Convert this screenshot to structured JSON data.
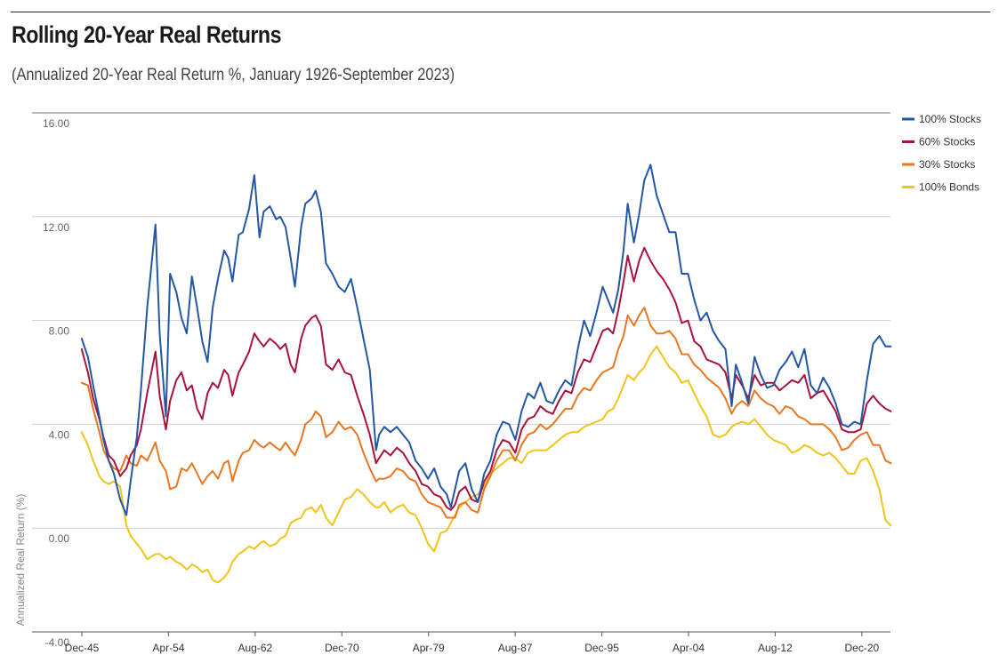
{
  "header": {
    "title": "Rolling 20-Year Real Returns",
    "subtitle": "(Annualized 20-Year Real Return %, January 1926-September 2023)"
  },
  "chart_data": {
    "type": "line",
    "ylabel": "Annualized Real Return (%)",
    "ylim": [
      -4,
      16
    ],
    "yticks": [
      "16.00",
      "12.00",
      "8.00",
      "4.00",
      "0.00",
      "-4.00"
    ],
    "ytick_values": [
      16,
      12,
      8,
      4,
      0,
      -4
    ],
    "xlim": [
      1945.917,
      2023.667
    ],
    "xticks": [
      "Dec-45",
      "Apr-54",
      "Aug-62",
      "Dec-70",
      "Apr-79",
      "Aug-87",
      "Dec-95",
      "Apr-04",
      "Aug-12",
      "Dec-20"
    ],
    "xtick_values": [
      1945.917,
      1954.25,
      1962.583,
      1970.917,
      1979.25,
      1987.583,
      1995.917,
      2004.25,
      2012.583,
      2020.917
    ],
    "grid": true,
    "legend_position": "top-right",
    "series": [
      {
        "name": "100% Stocks",
        "color": "#2357a3",
        "x": [
          1945.9,
          1946.5,
          1947,
          1947.6,
          1948,
          1948.5,
          1949,
          1949.6,
          1950.2,
          1950.6,
          1951.2,
          1951.6,
          1952.2,
          1953,
          1953.4,
          1954,
          1954.4,
          1955,
          1955.5,
          1956,
          1956.5,
          1957,
          1957.5,
          1958,
          1958.5,
          1959,
          1959.6,
          1960,
          1960.4,
          1961,
          1961.4,
          1962,
          1962.5,
          1963,
          1963.4,
          1964,
          1964.6,
          1965,
          1965.5,
          1966,
          1966.4,
          1967,
          1967.4,
          1968,
          1968.4,
          1968.9,
          1969.4,
          1970,
          1970.6,
          1971.2,
          1971.8,
          1972.4,
          1973,
          1973.6,
          1974.2,
          1974.5,
          1975,
          1975.6,
          1976.2,
          1976.8,
          1977.4,
          1978,
          1978.6,
          1979.2,
          1979.8,
          1980.4,
          1981,
          1981.4,
          1981.8,
          1982.2,
          1982.8,
          1983.4,
          1984,
          1984.6,
          1985.2,
          1985.8,
          1986.4,
          1987,
          1987.6,
          1988.2,
          1988.8,
          1989.4,
          1990,
          1990.6,
          1991.2,
          1991.8,
          1992.4,
          1993,
          1993.6,
          1994.2,
          1994.8,
          1995.4,
          1996,
          1996.5,
          1997,
          1997.5,
          1998,
          1998.4,
          1999,
          1999.5,
          2000,
          2000.6,
          2001.2,
          2001.8,
          2002.4,
          2003,
          2003.6,
          2004.2,
          2004.8,
          2005.4,
          2006,
          2006.6,
          2007.2,
          2007.8,
          2008.4,
          2008.8,
          2009.4,
          2010,
          2010.6,
          2011.2,
          2011.8,
          2012.4,
          2013,
          2013.6,
          2014.2,
          2014.8,
          2015.4,
          2016,
          2016.6,
          2017.2,
          2017.8,
          2018.4,
          2019,
          2019.6,
          2020.2,
          2020.8,
          2021.4,
          2022,
          2022.6,
          2023.2,
          2023.7
        ],
        "y": [
          7.3,
          6.6,
          5.5,
          4.3,
          3.4,
          2.6,
          2.1,
          1.1,
          0.5,
          1.8,
          3.5,
          5.3,
          8.5,
          11.7,
          7.5,
          4.3,
          9.8,
          9.1,
          8.1,
          7.5,
          9.7,
          8.5,
          7.2,
          6.4,
          8.5,
          9.6,
          10.7,
          10.4,
          9.5,
          11.3,
          11.4,
          12.3,
          13.6,
          11.2,
          12.2,
          12.4,
          11.9,
          12.0,
          11.6,
          10.4,
          9.3,
          11.6,
          12.5,
          12.7,
          13.0,
          12.2,
          10.2,
          9.8,
          9.3,
          9.1,
          9.6,
          8.5,
          7.3,
          6.1,
          3.0,
          3.6,
          3.9,
          3.7,
          3.9,
          3.6,
          3.3,
          2.6,
          2.3,
          1.9,
          2.3,
          1.6,
          1.3,
          0.8,
          1.5,
          2.2,
          2.5,
          1.5,
          1.0,
          2.1,
          2.6,
          3.6,
          4.1,
          4.0,
          3.4,
          4.5,
          5.2,
          5.0,
          5.6,
          4.9,
          4.8,
          5.3,
          5.7,
          5.5,
          6.9,
          8.0,
          7.4,
          8.3,
          9.3,
          8.8,
          8.3,
          9.2,
          10.7,
          12.5,
          11.0,
          12.1,
          13.4,
          14.0,
          12.8,
          12.1,
          11.4,
          11.4,
          9.8,
          9.8,
          8.8,
          8.0,
          8.3,
          7.6,
          7.2,
          6.9,
          4.7,
          6.3,
          5.6,
          4.8,
          6.6,
          5.9,
          5.4,
          5.5,
          6.1,
          6.4,
          6.8,
          6.2,
          6.9,
          5.5,
          5.2,
          5.8,
          5.4,
          4.8,
          4.0,
          3.9,
          4.1,
          4.0,
          5.7,
          7.1,
          7.4,
          7.0,
          7.0
        ]
      },
      {
        "name": "60% Stocks",
        "color": "#a8123c",
        "x": [
          1945.9,
          1946.5,
          1947,
          1947.6,
          1948,
          1948.5,
          1949,
          1949.6,
          1950.2,
          1950.6,
          1951.2,
          1951.6,
          1952.2,
          1953,
          1953.4,
          1954,
          1954.4,
          1955,
          1955.5,
          1956,
          1956.5,
          1957,
          1957.5,
          1958,
          1958.5,
          1959,
          1959.6,
          1960,
          1960.4,
          1961,
          1961.4,
          1962,
          1962.5,
          1963,
          1963.4,
          1964,
          1964.6,
          1965,
          1965.5,
          1966,
          1966.4,
          1967,
          1967.4,
          1968,
          1968.4,
          1968.9,
          1969.4,
          1970,
          1970.6,
          1971.2,
          1971.8,
          1972.4,
          1973,
          1973.6,
          1974.2,
          1974.5,
          1975,
          1975.6,
          1976.2,
          1976.8,
          1977.4,
          1978,
          1978.6,
          1979.2,
          1979.8,
          1980.4,
          1981,
          1981.4,
          1981.8,
          1982.2,
          1982.8,
          1983.4,
          1984,
          1984.6,
          1985.2,
          1985.8,
          1986.4,
          1987,
          1987.6,
          1988.2,
          1988.8,
          1989.4,
          1990,
          1990.6,
          1991.2,
          1991.8,
          1992.4,
          1993,
          1993.6,
          1994.2,
          1994.8,
          1995.4,
          1996,
          1996.5,
          1997,
          1997.5,
          1998,
          1998.4,
          1999,
          1999.5,
          2000,
          2000.6,
          2001.2,
          2001.8,
          2002.4,
          2003,
          2003.6,
          2004.2,
          2004.8,
          2005.4,
          2006,
          2006.6,
          2007.2,
          2007.8,
          2008.4,
          2008.8,
          2009.4,
          2010,
          2010.6,
          2011.2,
          2011.8,
          2012.4,
          2013,
          2013.6,
          2014.2,
          2014.8,
          2015.4,
          2016,
          2016.6,
          2017.2,
          2017.8,
          2018.4,
          2019,
          2019.6,
          2020.2,
          2020.8,
          2021.4,
          2022,
          2022.6,
          2023.2,
          2023.7
        ],
        "y": [
          6.9,
          6.0,
          5.0,
          4.2,
          3.5,
          2.8,
          2.6,
          2.0,
          2.3,
          2.8,
          3.2,
          3.8,
          5.2,
          6.8,
          5.1,
          3.8,
          4.9,
          5.7,
          6.0,
          5.3,
          5.5,
          4.6,
          4.2,
          5.2,
          5.6,
          5.4,
          6.1,
          5.9,
          5.1,
          6.0,
          6.3,
          6.8,
          7.5,
          7.2,
          7.0,
          7.3,
          7.1,
          6.9,
          7.1,
          6.3,
          6.0,
          7.3,
          7.8,
          8.1,
          8.2,
          7.8,
          6.3,
          6.1,
          6.5,
          6.0,
          5.9,
          5.1,
          4.4,
          3.6,
          2.5,
          2.7,
          3.0,
          2.8,
          3.1,
          2.9,
          2.5,
          2.2,
          1.7,
          1.6,
          1.3,
          1.2,
          0.8,
          0.7,
          0.9,
          1.4,
          1.6,
          1.1,
          1.0,
          1.8,
          2.2,
          3.0,
          3.4,
          3.3,
          2.9,
          3.8,
          4.2,
          4.3,
          4.7,
          4.5,
          4.4,
          4.9,
          5.3,
          5.2,
          6.0,
          6.5,
          6.4,
          7.0,
          7.6,
          7.7,
          7.5,
          8.4,
          9.5,
          10.5,
          9.5,
          10.3,
          10.8,
          10.3,
          9.9,
          9.6,
          9.2,
          8.7,
          7.9,
          8.0,
          7.2,
          7.0,
          6.5,
          6.4,
          6.3,
          6.0,
          5.0,
          5.9,
          5.5,
          5.0,
          5.9,
          5.5,
          5.6,
          5.6,
          5.3,
          5.5,
          5.7,
          5.6,
          5.9,
          5.0,
          5.2,
          5.3,
          4.9,
          4.5,
          3.8,
          3.7,
          3.7,
          3.8,
          4.8,
          5.1,
          4.8,
          4.6,
          4.5
        ]
      },
      {
        "name": "30% Stocks",
        "color": "#e87722",
        "x": [
          1945.9,
          1946.5,
          1947,
          1947.6,
          1948,
          1948.5,
          1949,
          1949.6,
          1950.2,
          1950.6,
          1951.2,
          1951.6,
          1952.2,
          1953,
          1953.4,
          1954,
          1954.4,
          1955,
          1955.5,
          1956,
          1956.5,
          1957,
          1957.5,
          1958,
          1958.5,
          1959,
          1959.6,
          1960,
          1960.4,
          1961,
          1961.4,
          1962,
          1962.5,
          1963,
          1963.4,
          1964,
          1964.6,
          1965,
          1965.5,
          1966,
          1966.4,
          1967,
          1967.4,
          1968,
          1968.4,
          1968.9,
          1969.4,
          1970,
          1970.6,
          1971.2,
          1971.8,
          1972.4,
          1973,
          1973.6,
          1974.2,
          1974.5,
          1975,
          1975.6,
          1976.2,
          1976.8,
          1977.4,
          1978,
          1978.6,
          1979.2,
          1979.8,
          1980.4,
          1981,
          1981.4,
          1981.8,
          1982.2,
          1982.8,
          1983.4,
          1984,
          1984.6,
          1985.2,
          1985.8,
          1986.4,
          1987,
          1987.6,
          1988.2,
          1988.8,
          1989.4,
          1990,
          1990.6,
          1991.2,
          1991.8,
          1992.4,
          1993,
          1993.6,
          1994.2,
          1994.8,
          1995.4,
          1996,
          1996.5,
          1997,
          1997.5,
          1998,
          1998.4,
          1999,
          1999.5,
          2000,
          2000.6,
          2001.2,
          2001.8,
          2002.4,
          2003,
          2003.6,
          2004.2,
          2004.8,
          2005.4,
          2006,
          2006.6,
          2007.2,
          2007.8,
          2008.4,
          2008.8,
          2009.4,
          2010,
          2010.6,
          2011.2,
          2011.8,
          2012.4,
          2013,
          2013.6,
          2014.2,
          2014.8,
          2015.4,
          2016,
          2016.6,
          2017.2,
          2017.8,
          2018.4,
          2019,
          2019.6,
          2020.2,
          2020.8,
          2021.4,
          2022,
          2022.6,
          2023.2,
          2023.7
        ],
        "y": [
          5.6,
          5.5,
          4.6,
          3.7,
          3.0,
          2.6,
          2.3,
          2.2,
          2.8,
          2.5,
          2.4,
          2.8,
          2.6,
          3.3,
          2.6,
          2.2,
          1.5,
          1.6,
          2.3,
          2.2,
          2.5,
          2.1,
          1.7,
          2.0,
          2.2,
          1.9,
          2.5,
          2.6,
          1.8,
          2.6,
          2.9,
          3.0,
          3.4,
          3.2,
          3.1,
          3.3,
          3.1,
          3.0,
          3.3,
          3.0,
          2.8,
          3.4,
          4.0,
          4.2,
          4.5,
          4.3,
          3.5,
          3.7,
          4.1,
          3.8,
          3.9,
          3.6,
          2.9,
          2.3,
          1.8,
          1.9,
          1.9,
          2.0,
          2.3,
          2.2,
          1.9,
          1.8,
          1.3,
          1.0,
          0.9,
          0.8,
          0.4,
          0.4,
          0.4,
          0.9,
          1.0,
          0.7,
          0.6,
          1.5,
          2.0,
          2.6,
          3.0,
          3.0,
          2.6,
          3.2,
          3.6,
          3.7,
          4.0,
          3.8,
          4.0,
          4.3,
          4.6,
          4.6,
          5.1,
          5.4,
          5.3,
          5.7,
          6.0,
          6.1,
          6.2,
          6.9,
          7.4,
          8.2,
          7.8,
          8.2,
          8.5,
          7.8,
          7.5,
          7.5,
          7.6,
          7.3,
          6.7,
          6.7,
          6.3,
          6.1,
          5.8,
          5.6,
          5.4,
          5.0,
          4.4,
          4.7,
          4.9,
          4.7,
          5.3,
          5.0,
          4.8,
          4.7,
          4.4,
          4.7,
          4.6,
          4.3,
          4.2,
          4.0,
          4.0,
          4.0,
          3.8,
          3.5,
          3.0,
          3.1,
          3.4,
          3.6,
          3.7,
          3.2,
          3.2,
          2.6,
          2.5
        ]
      },
      {
        "name": "100% Bonds",
        "color": "#f0c419",
        "x": [
          1945.9,
          1946.5,
          1947,
          1947.6,
          1948,
          1948.5,
          1949,
          1949.6,
          1950.2,
          1950.6,
          1951.2,
          1951.6,
          1952.2,
          1953,
          1953.4,
          1954,
          1954.4,
          1955,
          1955.5,
          1956,
          1956.5,
          1957,
          1957.5,
          1958,
          1958.5,
          1959,
          1959.6,
          1960,
          1960.4,
          1961,
          1961.4,
          1962,
          1962.5,
          1963,
          1963.4,
          1964,
          1964.6,
          1965,
          1965.5,
          1966,
          1966.4,
          1967,
          1967.4,
          1968,
          1968.4,
          1968.9,
          1969.4,
          1970,
          1970.6,
          1971.2,
          1971.8,
          1972.4,
          1973,
          1973.6,
          1974.2,
          1974.5,
          1975,
          1975.6,
          1976.2,
          1976.8,
          1977.4,
          1978,
          1978.6,
          1979.2,
          1979.8,
          1980.4,
          1981,
          1981.4,
          1981.8,
          1982.2,
          1982.8,
          1983.4,
          1984,
          1984.6,
          1985.2,
          1985.8,
          1986.4,
          1987,
          1987.6,
          1988.2,
          1988.8,
          1989.4,
          1990,
          1990.6,
          1991.2,
          1991.8,
          1992.4,
          1993,
          1993.6,
          1994.2,
          1994.8,
          1995.4,
          1996,
          1996.5,
          1997,
          1997.5,
          1998,
          1998.4,
          1999,
          1999.5,
          2000,
          2000.6,
          2001.2,
          2001.8,
          2002.4,
          2003,
          2003.6,
          2004.2,
          2004.8,
          2005.4,
          2006,
          2006.6,
          2007.2,
          2007.8,
          2008.4,
          2008.8,
          2009.4,
          2010,
          2010.6,
          2011.2,
          2011.8,
          2012.4,
          2013,
          2013.6,
          2014.2,
          2014.8,
          2015.4,
          2016,
          2016.6,
          2017.2,
          2017.8,
          2018.4,
          2019,
          2019.6,
          2020.2,
          2020.8,
          2021.4,
          2022,
          2022.6,
          2023.2,
          2023.7
        ],
        "y": [
          3.7,
          3.2,
          2.6,
          2.0,
          1.8,
          1.7,
          1.8,
          1.6,
          0.1,
          -0.3,
          -0.6,
          -0.8,
          -1.2,
          -1.0,
          -1.0,
          -1.2,
          -1.1,
          -1.3,
          -1.4,
          -1.6,
          -1.4,
          -1.5,
          -1.7,
          -1.6,
          -2.0,
          -2.1,
          -1.9,
          -1.7,
          -1.3,
          -1.0,
          -0.9,
          -0.7,
          -0.8,
          -0.6,
          -0.5,
          -0.7,
          -0.6,
          -0.4,
          -0.3,
          0.2,
          0.3,
          0.4,
          0.7,
          0.8,
          0.6,
          0.9,
          0.4,
          0.1,
          0.6,
          1.1,
          1.2,
          1.5,
          1.3,
          1.0,
          0.8,
          0.8,
          1.0,
          0.6,
          0.8,
          0.9,
          0.6,
          0.5,
          0.0,
          -0.6,
          -0.9,
          -0.2,
          -0.1,
          0.2,
          0.5,
          0.8,
          1.0,
          1.2,
          1.3,
          1.6,
          2.1,
          2.3,
          2.5,
          2.7,
          2.7,
          2.5,
          2.9,
          3.0,
          3.0,
          3.0,
          3.2,
          3.4,
          3.6,
          3.7,
          3.7,
          3.9,
          4.0,
          4.1,
          4.2,
          4.5,
          4.6,
          5.0,
          5.5,
          5.9,
          5.7,
          6.0,
          6.2,
          6.7,
          7.0,
          6.6,
          6.2,
          6.0,
          5.6,
          5.7,
          5.2,
          4.7,
          4.3,
          3.6,
          3.5,
          3.6,
          3.9,
          4.0,
          4.1,
          4.0,
          4.2,
          3.9,
          3.6,
          3.4,
          3.3,
          3.2,
          2.9,
          3.0,
          3.2,
          3.1,
          2.9,
          2.8,
          2.9,
          2.7,
          2.4,
          2.1,
          2.1,
          2.6,
          2.7,
          2.2,
          1.5,
          0.3,
          0.1
        ]
      }
    ]
  }
}
